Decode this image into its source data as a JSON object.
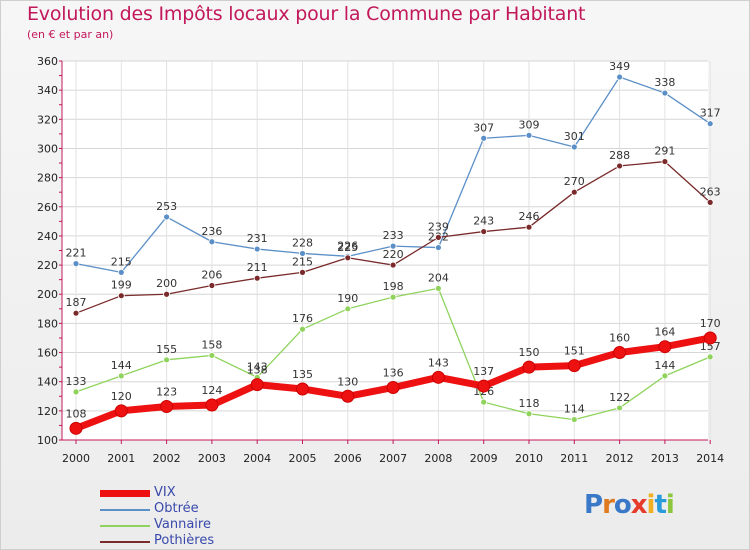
{
  "title": "Evolution des Impôts locaux pour la Commune par Habitant",
  "subtitle": "(en € et par an)",
  "logo": {
    "text": "Proxiti"
  },
  "chart_data": {
    "type": "line",
    "title": "Evolution des Impôts locaux pour la Commune par Habitant",
    "subtitle": "(en € et par an)",
    "x": [
      2000,
      2001,
      2002,
      2003,
      2004,
      2005,
      2006,
      2007,
      2008,
      2009,
      2010,
      2011,
      2012,
      2013,
      2014
    ],
    "ylim": [
      100,
      360
    ],
    "yticks": [
      100,
      120,
      140,
      160,
      180,
      200,
      220,
      240,
      260,
      280,
      300,
      320,
      340,
      360
    ],
    "grid": true,
    "legend_position": "bottom-left",
    "series": [
      {
        "name": "Obtrée",
        "color": "#5b8fc7",
        "width": 1.3,
        "values": [
          221,
          215,
          253,
          236,
          231,
          228,
          226,
          233,
          232,
          307,
          309,
          301,
          349,
          338,
          317
        ],
        "labels": [
          "221",
          "215",
          "253",
          "236",
          "231",
          "228",
          "226",
          "233",
          "232",
          "307",
          "309",
          "301",
          "349",
          "338",
          "317"
        ]
      },
      {
        "name": "Pothières",
        "color": "#7a2a2a",
        "width": 1.3,
        "values": [
          187,
          199,
          200,
          206,
          211,
          215,
          225,
          220,
          239,
          243,
          246,
          270,
          288,
          291,
          263
        ],
        "labels": [
          "187",
          "199",
          "200",
          "206",
          "211",
          "215",
          "225",
          "220",
          "239",
          "243",
          "246",
          "270",
          "288",
          "291",
          "263"
        ]
      },
      {
        "name": "Vannaire",
        "color": "#8fd35c",
        "width": 1.3,
        "values": [
          133,
          144,
          155,
          158,
          143,
          176,
          190,
          198,
          204,
          126,
          118,
          114,
          122,
          144,
          157
        ],
        "labels": [
          "133",
          "144",
          "155",
          "158",
          "143",
          "176",
          "190",
          "198",
          "204",
          "126",
          "118",
          "114",
          "122",
          "144",
          "157"
        ]
      },
      {
        "name": "VIX",
        "color": "#ee1111",
        "width": 7,
        "values": [
          108,
          120,
          123,
          124,
          138,
          135,
          130,
          136,
          143,
          137,
          150,
          151,
          160,
          164,
          170
        ],
        "labels": [
          "108",
          "120",
          "123",
          "124",
          "138",
          "135",
          "130",
          "136",
          "143",
          "137",
          "150",
          "151",
          "160",
          "164",
          "170"
        ]
      }
    ],
    "legend": [
      "VIX",
      "Obtrée",
      "Vannaire",
      "Pothières"
    ]
  }
}
